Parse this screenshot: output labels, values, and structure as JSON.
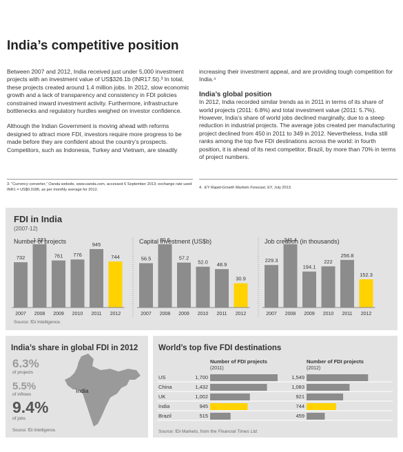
{
  "title": "India’s competitive position",
  "columns": [
    [
      "Between 2007 and 2012, India received just under 5,000 investment projects with an investment value of US$326.1b (INR17.5t).³ In total, these projects created around 1.4 million jobs. In 2012, slow economic growth and a lack of transparency and consistency in FDI policies constrained inward investment activity. Furthermore, infrastructure bottlenecks and regulatory hurdles weighed on investor confidence.",
      "Although the Indian Government is moving ahead with reforms designed to attract more FDI, investors require more progress to be made before they are confident about the country’s prospects. Competitors, such as Indonesia, Turkey and Vietnam, are steadily"
    ],
    [
      "increasing their investment appeal, and are providing tough competition for India.⁴"
    ]
  ],
  "section": {
    "heading": "India’s global position",
    "text": "In 2012, India recorded similar trends as in 2011 in terms of its share of world projects (2011: 6.8%) and total investment value (2011: 5.7%). However, India’s share of world jobs declined marginally, due to a steep reduction in industrial projects. The average jobs created per manufacturing project declined from 450 in 2011 to 349 in 2012. Nevertheless, India still ranks among the top five FDI destinations across the world: in fourth position, it is ahead of its next competitor, Brazil, by more than 70% in terms of project numbers."
  },
  "footnotes": [
    "3.  “Currency converter,” Oanda website, www.oanda.com, accessed 6 September 2013; exchange rate used INR1 = US$0.0186, as per monthly average for 2012.",
    {
      "number": "4.",
      "italic": "EY Rapid-Growth Markets Forecast",
      "rest": ", EY, July 2013."
    }
  ],
  "fdi_panel": {
    "title": "FDI in India",
    "subtitle": "(2007-12)",
    "source": "Source: fDi Intelligence."
  },
  "share_panel": {
    "title": "India’s share in global FDI in 2012",
    "map_label": "India",
    "source": "Source: fDi Intelligence.",
    "stats": [
      {
        "value": "6.3%",
        "label": "of projects"
      },
      {
        "value": "5.5%",
        "label": "of inflows"
      },
      {
        "value": "9.4%",
        "label": "of jobs"
      }
    ]
  },
  "top_panel": {
    "title": "World’s top five FDI destinations",
    "source": "Source: fDi Markets, from the ",
    "source_italic": "Financial Times Ltd."
  },
  "chart_data": [
    {
      "type": "bar",
      "title": "Number of projects",
      "categories": [
        "2007",
        "2008",
        "2009",
        "2010",
        "2011",
        "2012"
      ],
      "values": [
        732,
        1023,
        761,
        776,
        945,
        744
      ],
      "value_labels": [
        "732",
        "1,023",
        "761",
        "776",
        "945",
        "744"
      ],
      "colors": [
        "#8c8c8c",
        "#8c8c8c",
        "#8c8c8c",
        "#8c8c8c",
        "#8c8c8c",
        "#ffd200"
      ]
    },
    {
      "type": "bar",
      "title": "Capital investment (US$b)",
      "categories": [
        "2007",
        "2008",
        "2009",
        "2010",
        "2011",
        "2012"
      ],
      "values": [
        56.5,
        80.6,
        57.2,
        52.0,
        48.9,
        30.9
      ],
      "value_labels": [
        "56.5",
        "80.6",
        "57.2",
        "52.0",
        "48.9",
        "30.9"
      ],
      "colors": [
        "#8c8c8c",
        "#8c8c8c",
        "#8c8c8c",
        "#8c8c8c",
        "#8c8c8c",
        "#ffd200"
      ]
    },
    {
      "type": "bar",
      "title": "Job creation (in thousands)",
      "categories": [
        "2007",
        "2008",
        "2009",
        "2010",
        "2011",
        "2012"
      ],
      "values": [
        229.3,
        341.4,
        194.1,
        222,
        256.8,
        152.3
      ],
      "value_labels": [
        "229.3",
        "341.4",
        "194.1",
        "222",
        "256.8",
        "152.3"
      ],
      "colors": [
        "#8c8c8c",
        "#8c8c8c",
        "#8c8c8c",
        "#8c8c8c",
        "#8c8c8c",
        "#ffd200"
      ]
    },
    {
      "type": "hbar",
      "categories": [
        "US",
        "China",
        "UK",
        "India",
        "Brazil"
      ],
      "series": [
        {
          "name": "Number of FDI projects",
          "period": "(2011)",
          "values": [
            1700,
            1432,
            1002,
            945,
            515
          ],
          "value_labels": [
            "1,700",
            "1,432",
            "1,002",
            "945",
            "515"
          ],
          "colors": [
            "#8c8c8c",
            "#8c8c8c",
            "#8c8c8c",
            "#ffd200",
            "#8c8c8c"
          ]
        },
        {
          "name": "Number of FDI projects",
          "period": "(2012)",
          "values": [
            1549,
            1083,
            921,
            744,
            459
          ],
          "value_labels": [
            "1,549",
            "1,083",
            "921",
            "744",
            "459"
          ],
          "colors": [
            "#8c8c8c",
            "#8c8c8c",
            "#8c8c8c",
            "#ffd200",
            "#8c8c8c"
          ]
        }
      ]
    }
  ]
}
